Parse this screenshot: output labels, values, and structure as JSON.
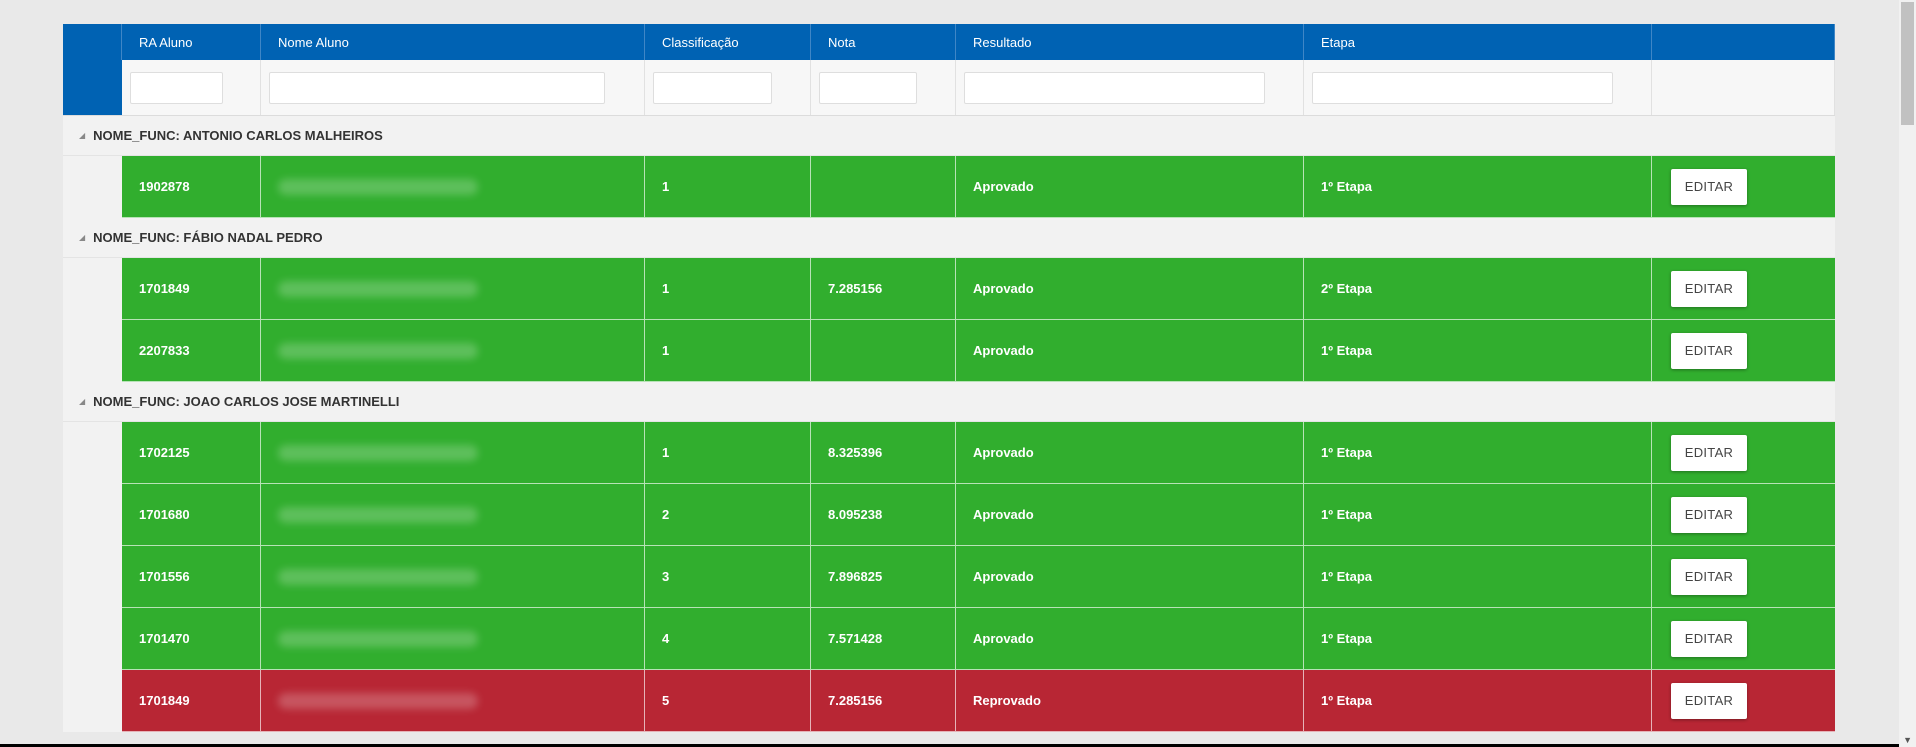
{
  "header": {
    "columns": [
      "RA Aluno",
      "Nome Aluno",
      "Classificação",
      "Nota",
      "Resultado",
      "Etapa"
    ]
  },
  "edit_label": "EDITAR",
  "groups": [
    {
      "label": "NOME_FUNC: ANTONIO CARLOS MALHEIROS",
      "rows": [
        {
          "ra": "1902878",
          "classificacao": "1",
          "nota": "",
          "resultado": "Aprovado",
          "etapa": "1º Etapa",
          "status": "ok"
        }
      ]
    },
    {
      "label": "NOME_FUNC: FÁBIO NADAL PEDRO",
      "rows": [
        {
          "ra": "1701849",
          "classificacao": "1",
          "nota": "7.285156",
          "resultado": "Aprovado",
          "etapa": "2º Etapa",
          "status": "ok"
        },
        {
          "ra": "2207833",
          "classificacao": "1",
          "nota": "",
          "resultado": "Aprovado",
          "etapa": "1º Etapa",
          "status": "ok"
        }
      ]
    },
    {
      "label": "NOME_FUNC: JOAO CARLOS JOSE MARTINELLI",
      "rows": [
        {
          "ra": "1702125",
          "classificacao": "1",
          "nota": "8.325396",
          "resultado": "Aprovado",
          "etapa": "1º Etapa",
          "status": "ok"
        },
        {
          "ra": "1701680",
          "classificacao": "2",
          "nota": "8.095238",
          "resultado": "Aprovado",
          "etapa": "1º Etapa",
          "status": "ok"
        },
        {
          "ra": "1701556",
          "classificacao": "3",
          "nota": "7.896825",
          "resultado": "Aprovado",
          "etapa": "1º Etapa",
          "status": "ok"
        },
        {
          "ra": "1701470",
          "classificacao": "4",
          "nota": "7.571428",
          "resultado": "Aprovado",
          "etapa": "1º Etapa",
          "status": "ok"
        },
        {
          "ra": "1701849",
          "classificacao": "5",
          "nota": "7.285156",
          "resultado": "Reprovado",
          "etapa": "1º Etapa",
          "status": "bad"
        }
      ]
    }
  ],
  "colors": {
    "header": "#0062b3",
    "approved": "#31ae2e",
    "failed": "#b82634"
  }
}
